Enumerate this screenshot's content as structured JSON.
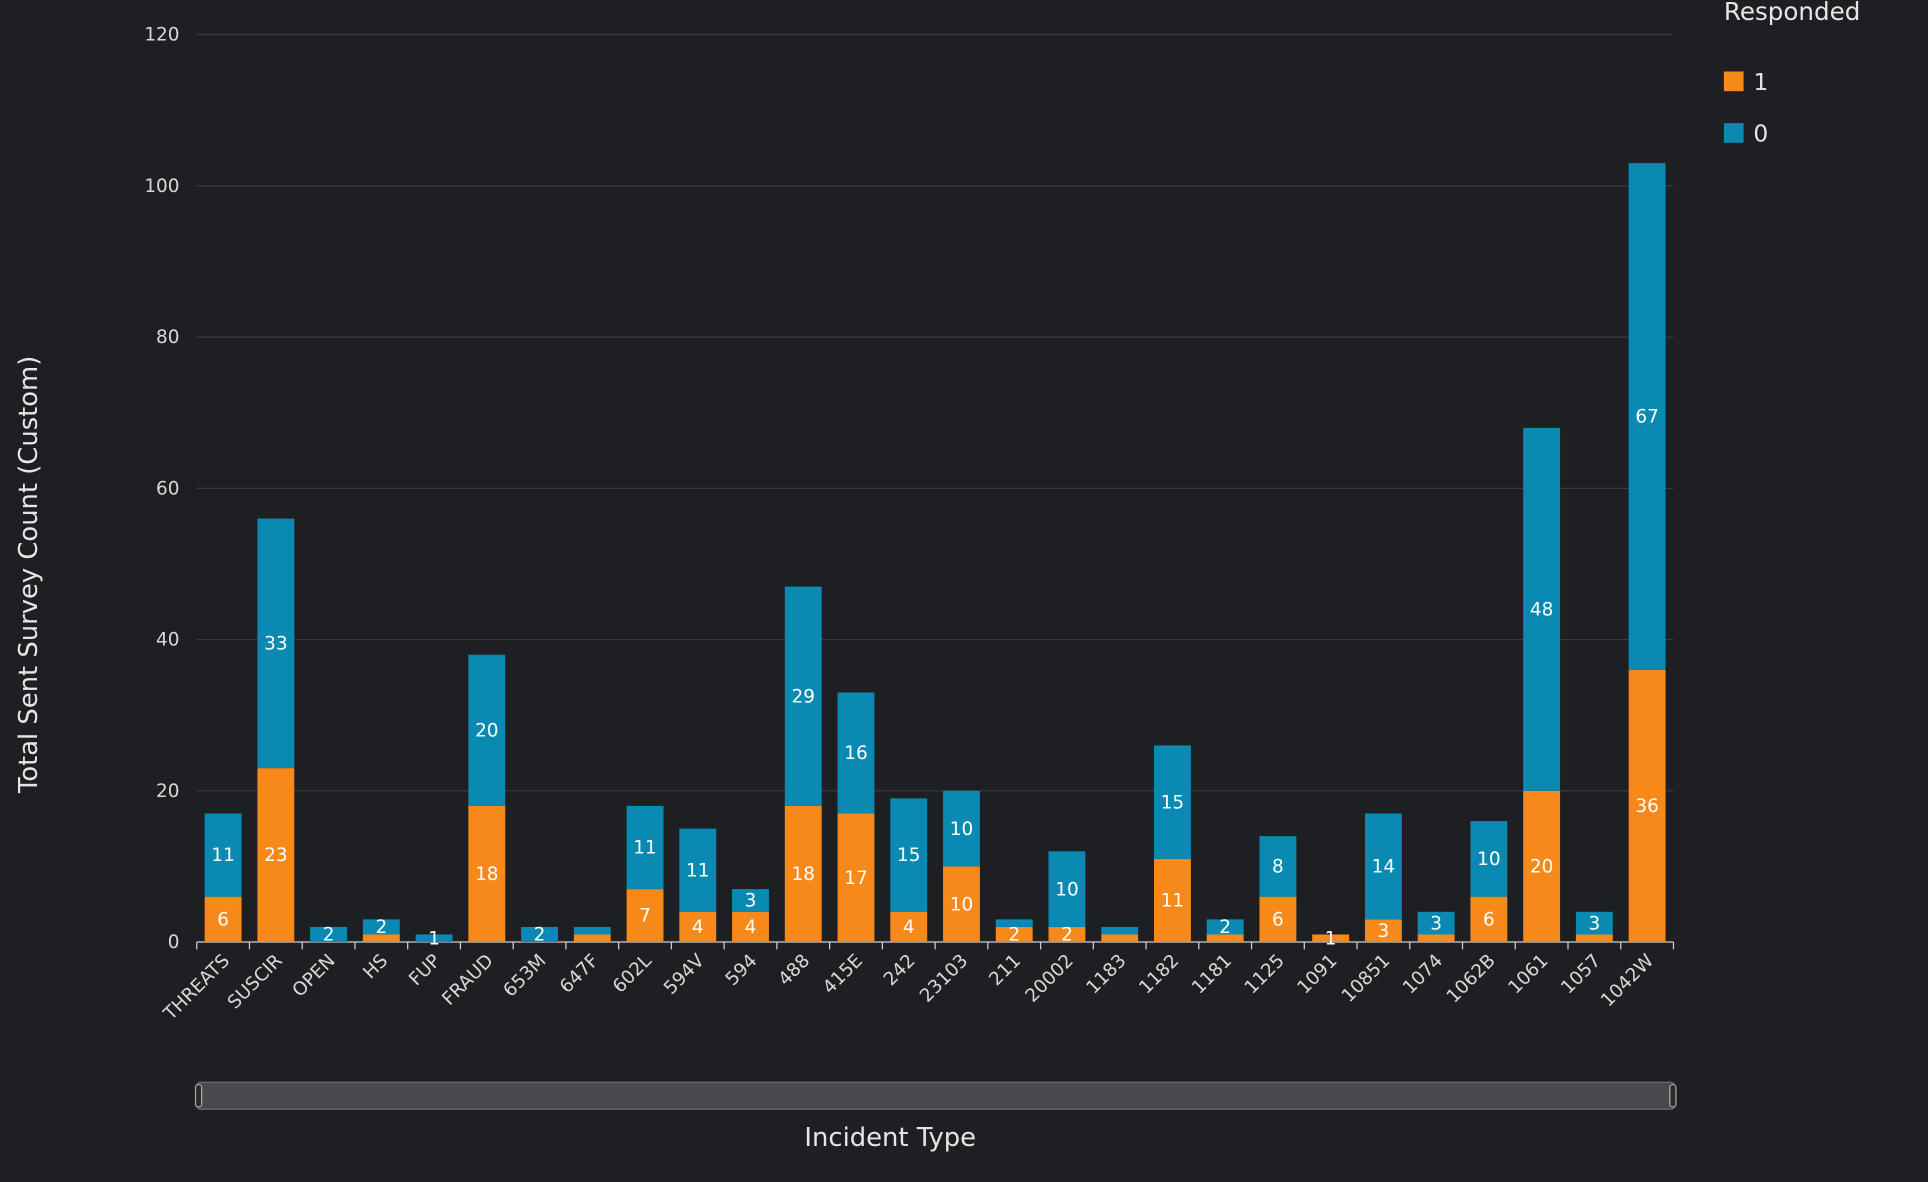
{
  "chart_data": {
    "type": "stacked_bar",
    "y_label": "Total Sent Survey Count (Custom)",
    "x_label": "Incident Type",
    "legend_title": "Responded",
    "categories": [
      "THREATS",
      "SUSCIR",
      "OPEN",
      "HS",
      "FUP",
      "FRAUD",
      "653M",
      "647F",
      "602L",
      "594V",
      "594",
      "488",
      "415E",
      "242",
      "23103",
      "211",
      "20002",
      "1183",
      "1182",
      "1181",
      "1125",
      "1091",
      "10851",
      "1074",
      "1062B",
      "1061",
      "1057",
      "1042W"
    ],
    "series": [
      {
        "name": "1",
        "color": "#f7891b",
        "values": [
          6,
          23,
          null,
          1,
          null,
          18,
          null,
          1,
          7,
          4,
          4,
          18,
          17,
          4,
          10,
          2,
          2,
          1,
          11,
          1,
          6,
          1,
          3,
          1,
          6,
          20,
          1,
          36
        ]
      },
      {
        "name": "0",
        "color": "#0a8ab3",
        "values": [
          11,
          33,
          2,
          2,
          1,
          20,
          2,
          1,
          11,
          11,
          3,
          29,
          16,
          15,
          10,
          1,
          10,
          1,
          15,
          2,
          8,
          null,
          14,
          3,
          10,
          48,
          3,
          67
        ]
      }
    ],
    "ylim": [
      0,
      120
    ],
    "yticks": [
      0,
      20,
      40,
      60,
      80,
      100,
      120
    ],
    "grid": true
  }
}
